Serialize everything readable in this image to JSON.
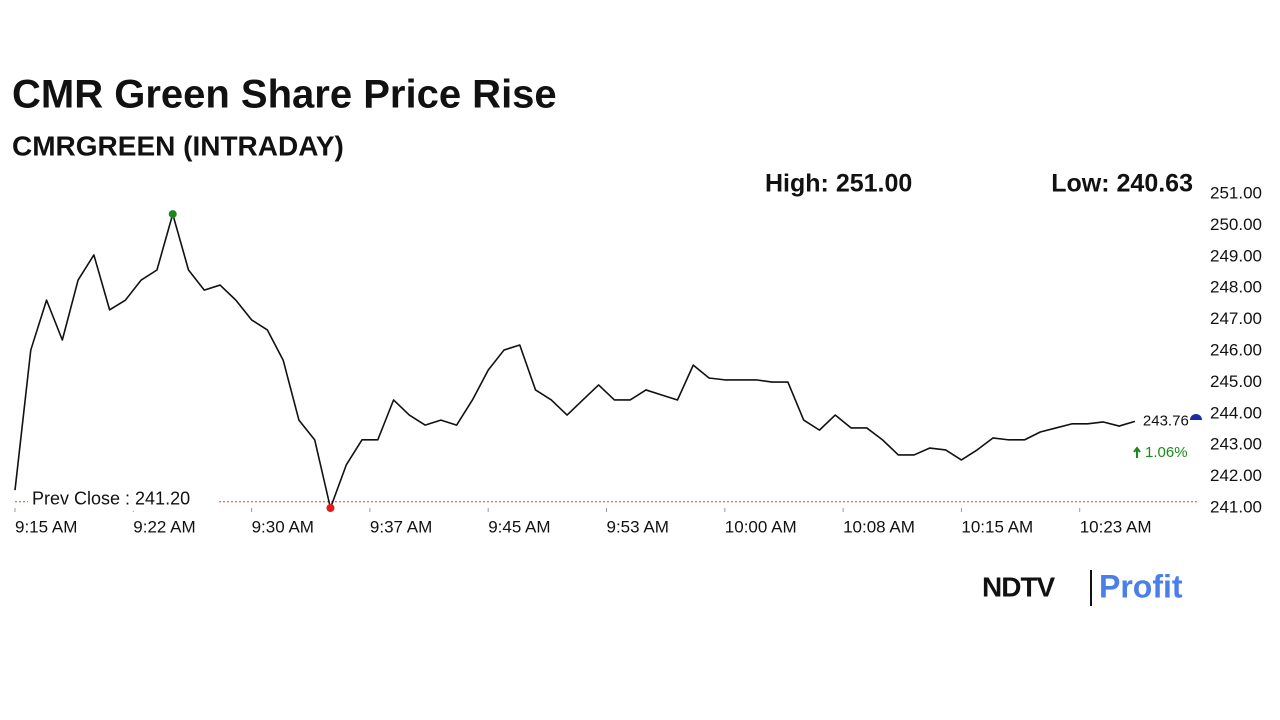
{
  "chart_data": {
    "type": "line",
    "title": "CMR Green Share Price Rise",
    "subtitle": "CMRGREEN (INTRADAY)",
    "high_label": "High: 251.00",
    "low_label": "Low: 240.63",
    "prev_close": 241.2,
    "prev_close_label": "Prev Close : 241.20",
    "last_label": "243.76",
    "change_label": "1.06%",
    "brand": [
      "NDTV",
      "Profit"
    ],
    "color": "#111111",
    "values": [
      241.57,
      246.03,
      247.62,
      246.35,
      248.26,
      249.06,
      247.31,
      247.62,
      248.26,
      248.58,
      250.36,
      248.58,
      247.94,
      248.1,
      247.62,
      246.99,
      246.67,
      245.71,
      243.8,
      243.17,
      241.0,
      242.37,
      243.17,
      243.17,
      244.44,
      243.96,
      243.64,
      243.8,
      243.64,
      244.44,
      245.39,
      246.03,
      246.19,
      244.76,
      244.44,
      243.96,
      244.44,
      244.92,
      244.44,
      244.44,
      244.76,
      244.6,
      244.44,
      245.55,
      245.14,
      245.08,
      245.08,
      245.08,
      245.01,
      245.01,
      243.8,
      243.48,
      243.96,
      243.55,
      243.55,
      243.17,
      242.69,
      242.69,
      242.91,
      242.85,
      242.53,
      242.85,
      243.23,
      243.17,
      243.17,
      243.42,
      243.55,
      243.68,
      243.68,
      243.74,
      243.61,
      243.76
    ],
    "xlim": [
      0,
      75
    ],
    "xticks": [
      {
        "value": 0,
        "label": "9:15 AM"
      },
      {
        "value": 7.5,
        "label": "9:22 AM"
      },
      {
        "value": 15,
        "label": "9:30 AM"
      },
      {
        "value": 22.5,
        "label": "9:37 AM"
      },
      {
        "value": 30,
        "label": "9:45 AM"
      },
      {
        "value": 37.5,
        "label": "9:53 AM"
      },
      {
        "value": 45,
        "label": "10:00 AM"
      },
      {
        "value": 52.5,
        "label": "10:08 AM"
      },
      {
        "value": 60,
        "label": "10:15 AM"
      },
      {
        "value": 67.5,
        "label": "10:23 AM"
      }
    ],
    "ylim": [
      241,
      251
    ],
    "yticks": [
      {
        "value": 241,
        "label": "241.00"
      },
      {
        "value": 242,
        "label": "242.00"
      },
      {
        "value": 243,
        "label": "243.00"
      },
      {
        "value": 244,
        "label": "244.00"
      },
      {
        "value": 245,
        "label": "245.00"
      },
      {
        "value": 246,
        "label": "246.00"
      },
      {
        "value": 247,
        "label": "247.00"
      },
      {
        "value": 248,
        "label": "248.00"
      },
      {
        "value": 249,
        "label": "249.00"
      },
      {
        "value": 250,
        "label": "250.00"
      },
      {
        "value": 251,
        "label": "251.00"
      }
    ]
  }
}
